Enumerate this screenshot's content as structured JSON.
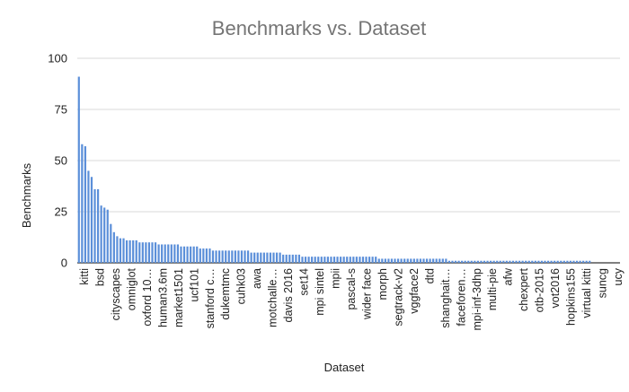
{
  "chart_data": {
    "type": "bar",
    "title": "Benchmarks vs. Dataset",
    "xlabel": "Dataset",
    "ylabel": "Benchmarks",
    "ylim": [
      0,
      100
    ],
    "yticks": [
      0,
      25,
      50,
      75,
      100
    ],
    "grid": "horizontal",
    "legend": "none",
    "bar_color": "#5b8fd9",
    "title_color": "#757575",
    "grid_color": "#d9d9d9",
    "baseline_color": "#333333",
    "x_tick_labels": [
      "kitti",
      "bsd",
      "cityscapes",
      "omniglot",
      "oxford 10…",
      "human3.6m",
      "market1501",
      "ucf101",
      "stanford c…",
      "dukemtmc",
      "cuhk03",
      "awa",
      "motchalle…",
      "davis 2016",
      "set14",
      "mpi sintel",
      "mpii",
      "pascal-s",
      "wider face",
      "morph",
      "segtrack-v2",
      "vggface2",
      "dtd",
      "shanghait…",
      "faceforen…",
      "mpi-inf-3dhp",
      "multi-pie",
      "afw",
      "chexpert",
      "otb-2015",
      "vot2016",
      "hopkins155",
      "virtual kitti",
      "suncg",
      "ucy"
    ],
    "values": [
      91,
      58,
      57,
      45,
      42,
      36,
      36,
      28,
      27,
      26,
      19,
      15,
      13,
      12,
      12,
      11,
      11,
      11,
      11,
      10,
      10,
      10,
      10,
      10,
      10,
      9,
      9,
      9,
      9,
      9,
      9,
      9,
      8,
      8,
      8,
      8,
      8,
      8,
      7,
      7,
      7,
      7,
      6,
      6,
      6,
      6,
      6,
      6,
      6,
      6,
      6,
      6,
      6,
      6,
      5,
      5,
      5,
      5,
      5,
      5,
      5,
      5,
      5,
      5,
      4,
      4,
      4,
      4,
      4,
      4,
      3,
      3,
      3,
      3,
      3,
      3,
      3,
      3,
      3,
      3,
      3,
      3,
      3,
      3,
      3,
      3,
      3,
      3,
      3,
      3,
      3,
      3,
      3,
      3,
      2,
      2,
      2,
      2,
      2,
      2,
      2,
      2,
      2,
      2,
      2,
      2,
      2,
      2,
      2,
      2,
      2,
      2,
      2,
      2,
      2,
      2,
      1,
      1,
      1,
      1,
      1,
      1,
      1,
      1,
      1,
      1,
      1,
      1,
      1,
      1,
      1,
      1,
      1,
      1,
      1,
      1,
      1,
      1,
      1,
      1,
      1,
      1,
      1,
      1,
      1,
      1,
      1,
      1,
      1,
      1,
      1,
      1,
      1,
      1,
      1,
      1,
      1,
      1,
      1,
      1,
      1,
      0,
      0,
      0,
      0,
      0,
      0,
      0,
      0,
      0
    ]
  }
}
